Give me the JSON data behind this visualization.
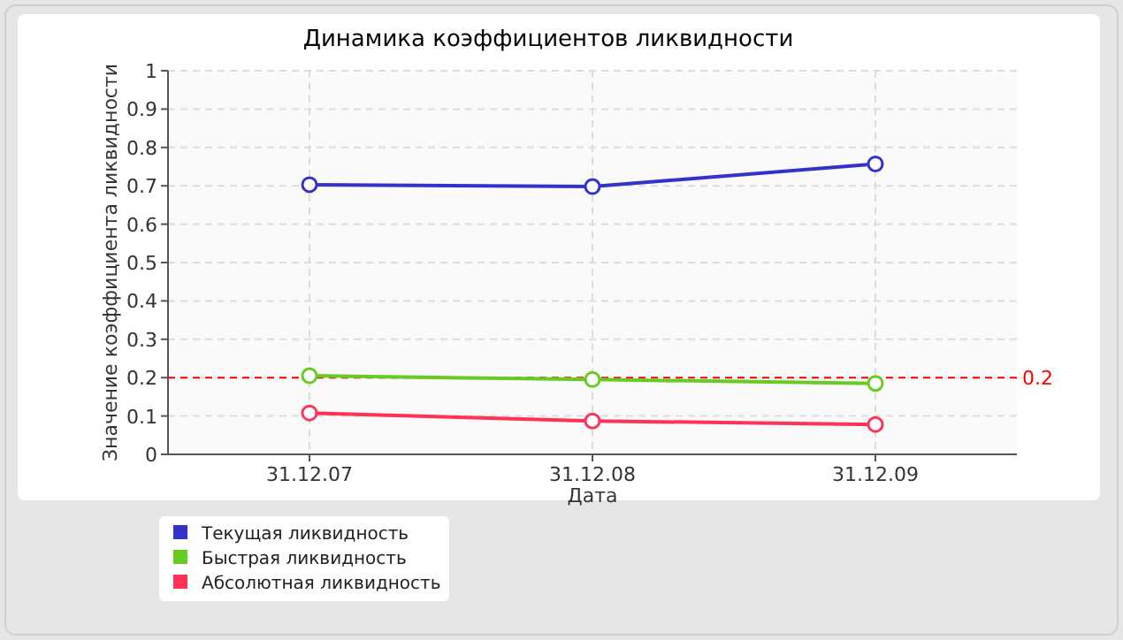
{
  "chart_data": {
    "type": "line",
    "title": "Динамика коэффициентов ликвидности",
    "xlabel": "Дата",
    "ylabel": "Значение коэффициента ликвидности",
    "categories": [
      "31.12.07",
      "31.12.08",
      "31.12.09"
    ],
    "series": [
      {
        "name": "Текущая ликвидность",
        "color": "#3333cc",
        "values": [
          0.703,
          0.698,
          0.757
        ]
      },
      {
        "name": "Быстрая ликвидность",
        "color": "#66cc22",
        "values": [
          0.205,
          0.195,
          0.185
        ]
      },
      {
        "name": "Абсолютная ликвидность",
        "color": "#ff3355",
        "values": [
          0.108,
          0.087,
          0.078
        ]
      }
    ],
    "ylim": [
      0,
      1
    ],
    "yticks": [
      0,
      0.1,
      0.2,
      0.3,
      0.4,
      0.5,
      0.6,
      0.7,
      0.8,
      0.9,
      1
    ],
    "grid": true,
    "legend": "bottom left",
    "marker": "circle",
    "line_style": "solid",
    "ref_lines": [
      {
        "axis": "y",
        "value": 0.2,
        "label": "0.2",
        "color": "#ff0000",
        "line_style": "dashed"
      }
    ]
  }
}
